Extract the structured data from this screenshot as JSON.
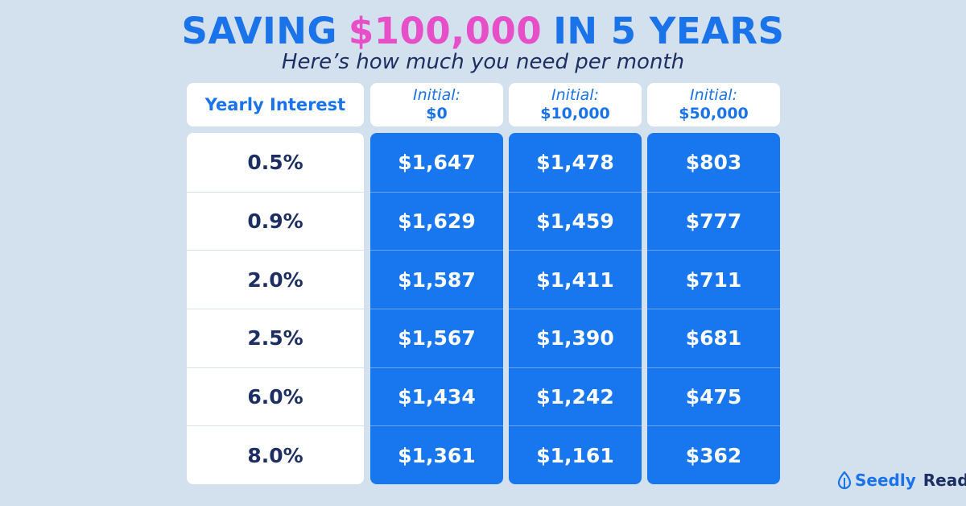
{
  "header": {
    "title_start": "SAVING",
    "title_highlight": "$100,000",
    "title_end": "IN 5 YEARS",
    "subtitle": "Here’s how much you need per month"
  },
  "table": {
    "columns": [
      {
        "label": "Yearly Interest"
      },
      {
        "label": "Initial:",
        "amount": "$0"
      },
      {
        "label": "Initial:",
        "amount": "$10,000"
      },
      {
        "label": "Initial:",
        "amount": "$50,000"
      }
    ],
    "rows": [
      [
        "0.5%",
        "$1,647",
        "$1,478",
        "$803"
      ],
      [
        "0.9%",
        "$1,629",
        "$1,459",
        "$777"
      ],
      [
        "2.0%",
        "$1,587",
        "$1,411",
        "$711"
      ],
      [
        "2.5%",
        "$1,567",
        "$1,390",
        "$681"
      ],
      [
        "6.0%",
        "$1,434",
        "$1,242",
        "$475"
      ],
      [
        "8.0%",
        "$1,361",
        "$1,161",
        "$362"
      ]
    ]
  },
  "logo": {
    "brand": "Seedly",
    "product": "Reads"
  }
}
